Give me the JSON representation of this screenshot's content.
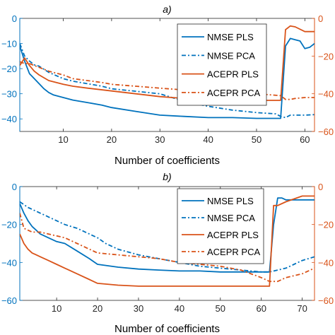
{
  "chart_data": [
    {
      "type": "line",
      "title": "a)",
      "xlabel": "Number of coefficients",
      "xlim": [
        1,
        62
      ],
      "xticks": [
        10,
        20,
        30,
        40,
        50,
        60
      ],
      "ylim_left": [
        -45,
        0
      ],
      "yticks_left": [
        0,
        -10,
        -20,
        -30,
        -40
      ],
      "ylim_right": [
        -60,
        0
      ],
      "yticks_right": [
        0,
        -20,
        -40,
        -60
      ],
      "legend_position": "top-right",
      "series": [
        {
          "name": "NMSE PLS",
          "axis": "left",
          "color": "#0072BD",
          "dash": "solid",
          "x": [
            1,
            2,
            3,
            4,
            5,
            6,
            7,
            8,
            10,
            12,
            15,
            18,
            20,
            25,
            30,
            35,
            40,
            45,
            50,
            54,
            55,
            56,
            57,
            58,
            59,
            60,
            61,
            62
          ],
          "y": [
            -11,
            -17,
            -22,
            -24,
            -26,
            -28,
            -29.5,
            -30.5,
            -31.5,
            -32.5,
            -33.5,
            -34.5,
            -35.5,
            -37,
            -38.5,
            -39,
            -39.5,
            -39.5,
            -39.8,
            -39.8,
            -39.8,
            -11,
            -8,
            -8.5,
            -9,
            -12,
            -11.5,
            -10
          ]
        },
        {
          "name": "NMSE PCA",
          "axis": "left",
          "color": "#0072BD",
          "dash": "dashdot",
          "x": [
            1,
            2,
            3,
            4,
            5,
            7,
            10,
            12,
            15,
            18,
            20,
            25,
            30,
            35,
            40,
            45,
            50,
            54,
            55,
            56,
            57,
            58,
            60,
            62
          ],
          "y": [
            -10,
            -15,
            -17,
            -18.5,
            -19,
            -21.5,
            -24,
            -25,
            -26,
            -27,
            -28,
            -29,
            -30,
            -33,
            -35,
            -36.5,
            -37.5,
            -38,
            -39,
            -39.5,
            -38.5,
            -38.5,
            -38.5,
            -38.3
          ]
        },
        {
          "name": "ACEPR PLS",
          "axis": "right",
          "color": "#D95319",
          "dash": "solid",
          "x": [
            1,
            2,
            3,
            4,
            5,
            7,
            10,
            12,
            15,
            20,
            25,
            30,
            35,
            40,
            45,
            50,
            54,
            55,
            56,
            57,
            58,
            60,
            62
          ],
          "y": [
            -25,
            -21,
            -25,
            -28,
            -30,
            -33,
            -35,
            -36,
            -37,
            -38.5,
            -40,
            -41.5,
            -42.5,
            -43.5,
            -43.5,
            -43.5,
            -43.5,
            -43.5,
            -6,
            -4,
            -4.5,
            -7,
            -7
          ]
        },
        {
          "name": "ACEPR PCA",
          "axis": "right",
          "color": "#D95319",
          "dash": "dashdot",
          "x": [
            1,
            2,
            3,
            4,
            5,
            7,
            10,
            12,
            15,
            18,
            20,
            25,
            30,
            35,
            40,
            45,
            50,
            55,
            56,
            57,
            58,
            60,
            62
          ],
          "y": [
            -23,
            -24,
            -24,
            -25,
            -26,
            -28,
            -30,
            -32,
            -33,
            -34,
            -35,
            -36,
            -37,
            -38,
            -39,
            -39.5,
            -40,
            -41,
            -43,
            -43,
            -42.5,
            -42,
            -42
          ]
        }
      ]
    },
    {
      "type": "line",
      "title": "b)",
      "xlabel": "Number of coefficients",
      "xlim": [
        1,
        73
      ],
      "xticks": [
        10,
        20,
        30,
        40,
        50,
        60,
        70
      ],
      "ylim_left": [
        -60,
        0
      ],
      "yticks_left": [
        0,
        -20,
        -40,
        -60
      ],
      "ylim_right": [
        -60,
        0
      ],
      "yticks_right": [
        0,
        -20,
        -40,
        -60
      ],
      "legend_position": "top-right",
      "series": [
        {
          "name": "NMSE PLS",
          "axis": "left",
          "color": "#0072BD",
          "dash": "solid",
          "x": [
            1,
            2,
            3,
            4,
            5,
            6,
            8,
            10,
            12,
            15,
            18,
            20,
            25,
            30,
            35,
            40,
            45,
            50,
            55,
            60,
            62,
            63,
            64,
            65,
            66,
            70,
            73
          ],
          "y": [
            -9,
            -14,
            -18,
            -21,
            -23,
            -25,
            -27,
            -29,
            -30,
            -34,
            -38,
            -41,
            -42.5,
            -43.5,
            -44,
            -44.5,
            -44.5,
            -45,
            -45,
            -45,
            -45,
            -20,
            -6,
            -6,
            -7,
            -7,
            -7
          ]
        },
        {
          "name": "NMSE PCA",
          "axis": "left",
          "color": "#0072BD",
          "dash": "dashdot",
          "x": [
            1,
            3,
            5,
            8,
            10,
            12,
            15,
            18,
            20,
            22,
            25,
            30,
            35,
            40,
            45,
            50,
            55,
            60,
            62,
            64,
            66,
            68,
            70,
            73
          ],
          "y": [
            -8,
            -11,
            -13,
            -16,
            -18,
            -20,
            -22,
            -25,
            -27,
            -30,
            -33,
            -36,
            -38,
            -40,
            -42,
            -43,
            -44,
            -45,
            -45,
            -44,
            -43,
            -41,
            -39,
            -37
          ]
        },
        {
          "name": "ACEPR PLS",
          "axis": "right",
          "color": "#D95319",
          "dash": "solid",
          "x": [
            1,
            2,
            3,
            4,
            5,
            6,
            8,
            10,
            12,
            15,
            18,
            20,
            25,
            30,
            35,
            40,
            45,
            50,
            55,
            60,
            62,
            63,
            64,
            66,
            70,
            73
          ],
          "y": [
            -25,
            -30,
            -33,
            -35,
            -36,
            -37,
            -39,
            -41,
            -43,
            -46,
            -49,
            -51,
            -52,
            -52.5,
            -52.5,
            -52.5,
            -52.5,
            -52.5,
            -52.5,
            -52.5,
            -52.5,
            -10,
            -10,
            -8,
            -5,
            -5
          ]
        },
        {
          "name": "ACEPR PCA",
          "axis": "right",
          "color": "#D95319",
          "dash": "dashdot",
          "x": [
            1,
            2,
            3,
            4,
            6,
            8,
            10,
            12,
            15,
            18,
            20,
            25,
            30,
            35,
            40,
            45,
            50,
            55,
            60,
            62,
            64,
            66,
            68,
            70,
            73
          ],
          "y": [
            -14,
            -22,
            -23,
            -24,
            -24,
            -25,
            -26,
            -27,
            -30,
            -33,
            -35,
            -36,
            -37,
            -38,
            -40,
            -41,
            -42,
            -44,
            -48,
            -50,
            -50,
            -48,
            -47,
            -46,
            -43
          ]
        }
      ]
    }
  ]
}
